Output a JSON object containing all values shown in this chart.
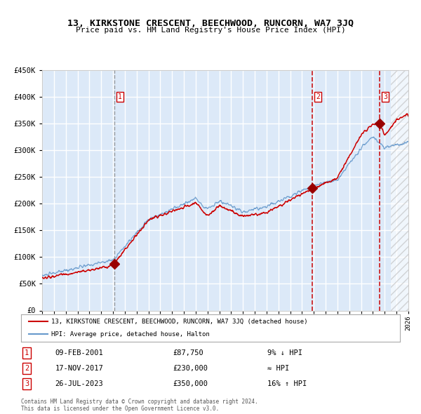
{
  "title": "13, KIRKSTONE CRESCENT, BEECHWOOD, RUNCORN, WA7 3JQ",
  "subtitle": "Price paid vs. HM Land Registry's House Price Index (HPI)",
  "legend_line1": "13, KIRKSTONE CRESCENT, BEECHWOOD, RUNCORN, WA7 3JQ (detached house)",
  "legend_line2": "HPI: Average price, detached house, Halton",
  "transactions": [
    {
      "num": 1,
      "date": "09-FEB-2001",
      "price": 87750,
      "note": "9% ↓ HPI",
      "year": 2001.1
    },
    {
      "num": 2,
      "date": "17-NOV-2017",
      "price": 230000,
      "note": "≈ HPI",
      "year": 2017.88
    },
    {
      "num": 3,
      "date": "26-JUL-2023",
      "price": 350000,
      "note": "16% ↑ HPI",
      "year": 2023.56
    }
  ],
  "footnote1": "Contains HM Land Registry data © Crown copyright and database right 2024.",
  "footnote2": "This data is licensed under the Open Government Licence v3.0.",
  "xmin": 1995,
  "xmax": 2026,
  "ymin": 0,
  "ymax": 450000,
  "yticks": [
    0,
    50000,
    100000,
    150000,
    200000,
    250000,
    300000,
    350000,
    400000,
    450000
  ],
  "background_color": "#dce9f8",
  "hatch_color": "#bbbbbb",
  "grid_color": "#ffffff",
  "red_line_color": "#cc0000",
  "blue_line_color": "#6699cc",
  "marker_color": "#990000",
  "dashed_line_color": "#cc0000",
  "future_cutoff": 2024.5
}
